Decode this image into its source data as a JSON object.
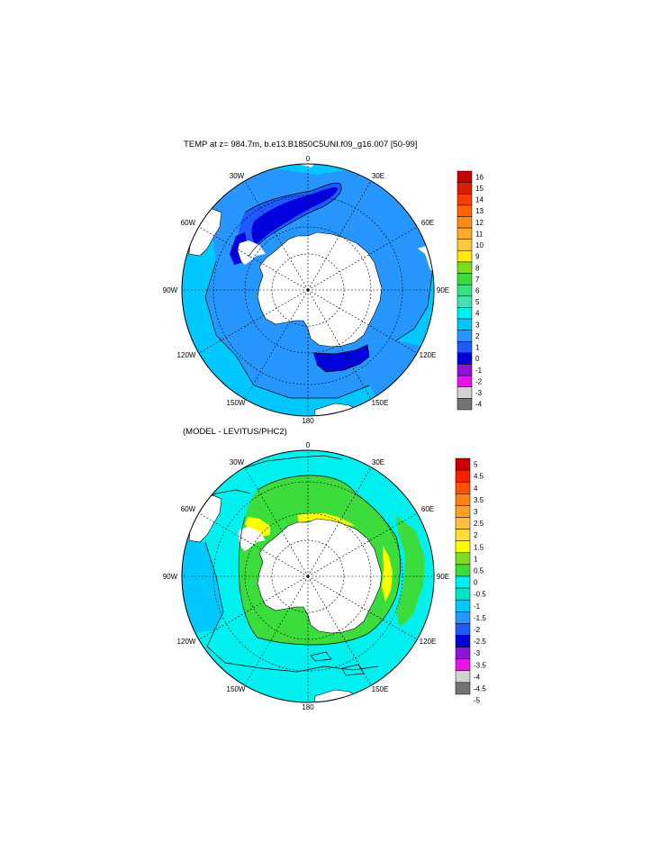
{
  "panels": [
    {
      "title": "TEMP at z= 984.7m, b.e13.B1850C5UNI.f09_g16.007 [50-99]",
      "longitude_labels": [
        "0",
        "30E",
        "60E",
        "90E",
        "120E",
        "150E",
        "180",
        "150W",
        "120W",
        "90W",
        "60W",
        "30W"
      ],
      "colorbar": {
        "labels": [
          "16",
          "15",
          "14",
          "13",
          "12",
          "11",
          "10",
          "9",
          "8",
          "7",
          "6",
          "5",
          "4",
          "3",
          "2",
          "1",
          "0",
          "-1",
          "-2",
          "-3",
          "-4"
        ],
        "colors": [
          "#c80000",
          "#dc1e00",
          "#ff3c00",
          "#ff6400",
          "#ff8c14",
          "#ffaa28",
          "#ffc83c",
          "#ffec00",
          "#7ddc1e",
          "#3cdc3c",
          "#32e682",
          "#3ce6b4",
          "#00f0f0",
          "#00c8ff",
          "#2896ff",
          "#1e5aff",
          "#0000dc",
          "#8c14dc",
          "#e614e6",
          "#d2d2d2",
          "#737373"
        ]
      },
      "field_colors": {
        "water_bg": "#2896ff",
        "warm_outer": "#00c8ff",
        "cold_band": "#1e5aff",
        "coldest": "#0000dc",
        "land": "#ffffff"
      }
    },
    {
      "title": "(MODEL - LEVITUS/PHC2)",
      "longitude_labels": [
        "0",
        "30E",
        "60E",
        "90E",
        "120E",
        "150E",
        "180",
        "150W",
        "120W",
        "90W",
        "60W",
        "30W"
      ],
      "colorbar": {
        "labels": [
          "5",
          "4.5",
          "4",
          "3.5",
          "3",
          "2.5",
          "2",
          "1.5",
          "1",
          "0.5",
          "0",
          "-0.5",
          "-1",
          "-1.5",
          "-2",
          "-2.5",
          "-3",
          "-3.5",
          "-4",
          "-4.5",
          "-5"
        ],
        "colors": [
          "#c80000",
          "#ff1e00",
          "#ff5000",
          "#ff8214",
          "#ffa028",
          "#ffbe3c",
          "#ffdc3c",
          "#ffff00",
          "#7ddc1e",
          "#3cdc3c",
          "#00f0f0",
          "#00e6c8",
          "#00c8ff",
          "#2896ff",
          "#1e5aff",
          "#0000dc",
          "#8c14dc",
          "#e614e6",
          "#d2d2d2",
          "#737373"
        ]
      },
      "field_colors": {
        "water_bg": "#00f0f0",
        "warm_ring": "#3cdc3c",
        "hot_spots": "#ffff00",
        "cool_patch": "#00c8ff",
        "land": "#ffffff"
      }
    }
  ]
}
